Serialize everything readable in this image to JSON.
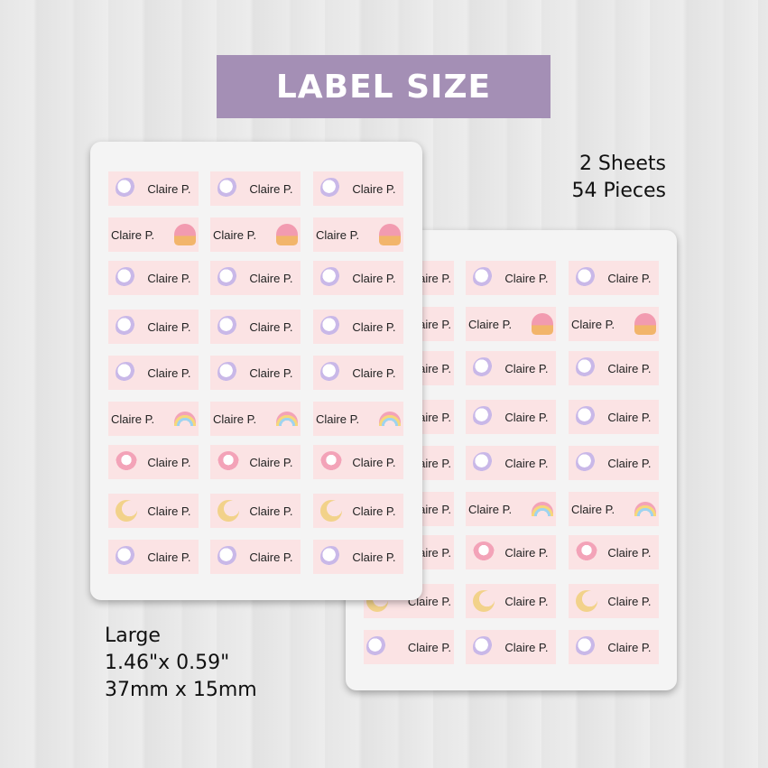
{
  "banner": {
    "title": "LABEL SIZE"
  },
  "sheets_info": {
    "line1": "2 Sheets",
    "line2": "54 Pieces"
  },
  "size_info": {
    "name": "Large",
    "inches": "1.46\"x 0.59\"",
    "mm": "37mm x 15mm"
  },
  "label": {
    "name": "Claire P.",
    "rows": [
      {
        "art": "unicorn",
        "text_first": false
      },
      {
        "art": "cupcake",
        "text_first": true
      },
      {
        "art": "unicorn",
        "text_first": false
      },
      {
        "art": "unicorn",
        "text_first": false
      },
      {
        "art": "unicorn",
        "text_first": false
      },
      {
        "art": "rainbow",
        "text_first": true
      },
      {
        "art": "pinkunicorn",
        "text_first": false
      },
      {
        "art": "moon",
        "text_first": false
      },
      {
        "art": "unicorn",
        "text_first": false
      }
    ]
  }
}
